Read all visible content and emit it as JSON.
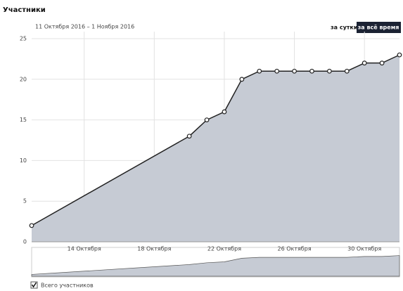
{
  "chart_data": {
    "type": "area",
    "title": "Участники",
    "subtitle": "11 Октября 2016 – 1 Ноября 2016",
    "buttons": [
      "за сутки",
      "за всё время"
    ],
    "x": [
      "2016-10-11",
      "2016-10-20",
      "2016-10-21",
      "2016-10-22",
      "2016-10-23",
      "2016-10-24",
      "2016-10-25",
      "2016-10-26",
      "2016-10-27",
      "2016-10-28",
      "2016-10-29",
      "2016-10-30",
      "2016-10-31",
      "2016-11-01"
    ],
    "series": [
      {
        "name": "Всего участников",
        "color": "#222222",
        "fill": "#c6cbd4",
        "values": [
          2,
          13,
          15,
          16,
          20,
          21,
          21,
          21,
          21,
          21,
          21,
          22,
          22,
          23
        ]
      }
    ],
    "xlim": [
      "2016-10-11",
      "2016-11-01"
    ],
    "xticks": [
      {
        "value": "2016-10-14",
        "label": "14 Октября"
      },
      {
        "value": "2016-10-18",
        "label": "18 Октября"
      },
      {
        "value": "2016-10-22",
        "label": "22 Октября"
      },
      {
        "value": "2016-10-26",
        "label": "26 Октября"
      },
      {
        "value": "2016-10-30",
        "label": "30 Октября"
      }
    ],
    "ylim": [
      0,
      25
    ],
    "yticks": [
      0,
      5,
      10,
      15,
      20,
      25
    ],
    "grid": true
  }
}
